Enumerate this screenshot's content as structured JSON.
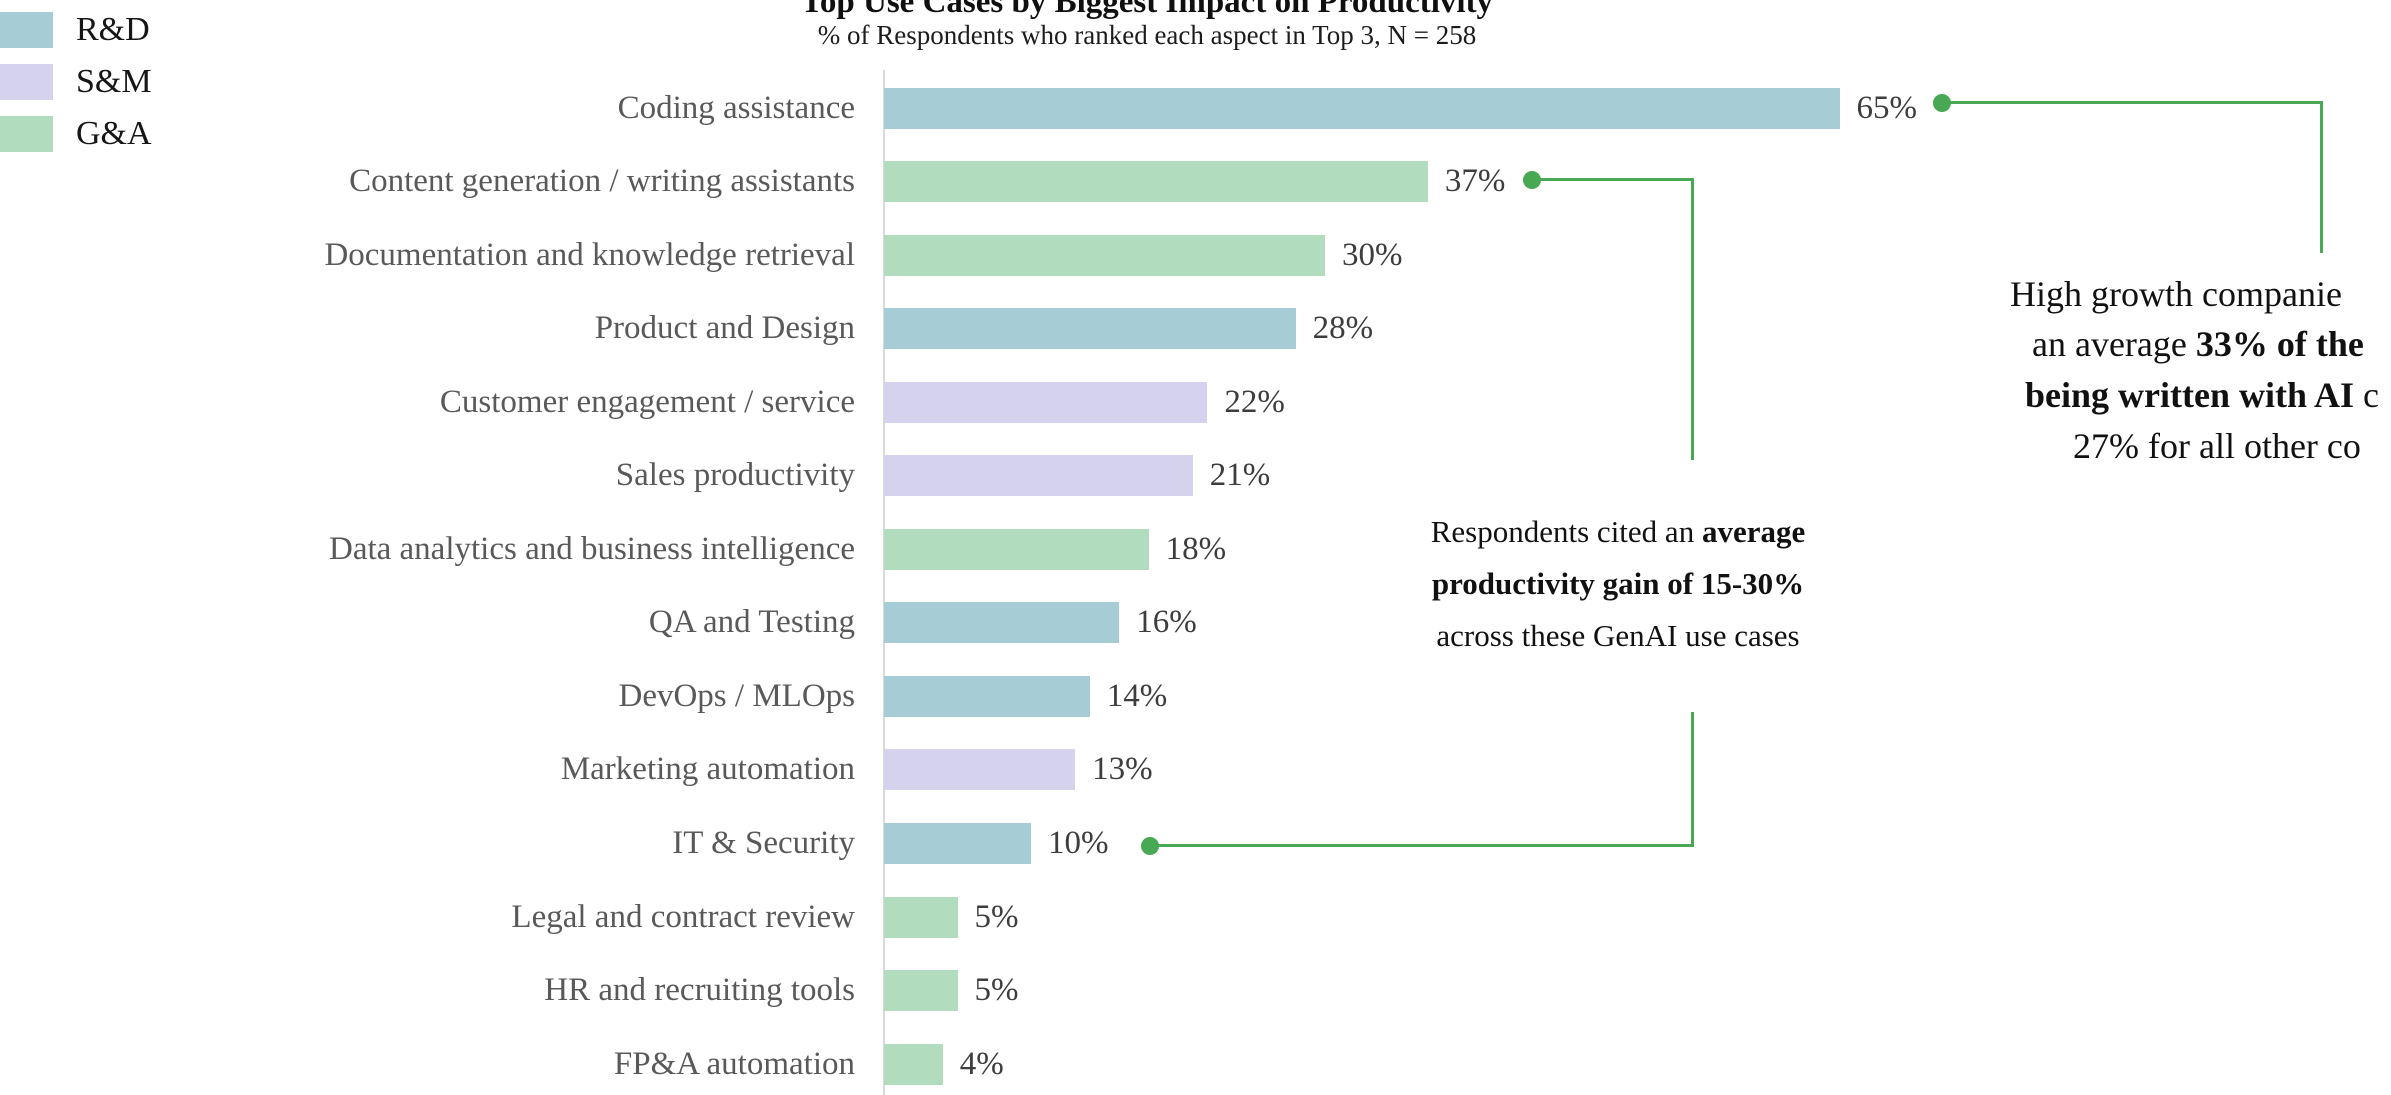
{
  "header": {
    "title": "Top Use Cases by Biggest Impact on Productivity",
    "subtitle": "% of Respondents who ranked each aspect in Top 3, N = 258"
  },
  "legend": {
    "items": [
      {
        "label": "R&D",
        "color": "#a6ccd5"
      },
      {
        "label": "S&M",
        "color": "#d4d2ed"
      },
      {
        "label": "G&A",
        "color": "#b1ddbe"
      }
    ]
  },
  "chart_data": {
    "type": "bar",
    "orientation": "horizontal",
    "title": "Top Use Cases by Biggest Impact on Productivity",
    "subtitle": "% of Respondents who ranked each aspect in Top 3, N = 258",
    "unit": "%",
    "legend_position": "top-left",
    "grid": false,
    "categories": [
      "Coding assistance",
      "Content generation / writing assistants",
      "Documentation and knowledge retrieval",
      "Product and Design",
      "Customer engagement / service",
      "Sales productivity",
      "Data analytics and business intelligence",
      "QA and Testing",
      "DevOps / MLOps",
      "Marketing automation",
      "IT & Security",
      "Legal and contract review",
      "HR and recruiting tools",
      "FP&A automation"
    ],
    "values": [
      65,
      37,
      30,
      28,
      22,
      21,
      18,
      16,
      14,
      13,
      10,
      5,
      5,
      4
    ],
    "value_labels": [
      "65%",
      "37%",
      "30%",
      "28%",
      "22%",
      "21%",
      "18%",
      "16%",
      "14%",
      "13%",
      "10%",
      "5%",
      "5%",
      "4%"
    ],
    "departments": [
      "R&D",
      "G&A",
      "G&A",
      "R&D",
      "S&M",
      "S&M",
      "G&A",
      "R&D",
      "R&D",
      "S&M",
      "R&D",
      "G&A",
      "G&A",
      "G&A"
    ],
    "colors": {
      "R&D": "#a6ccd5",
      "S&M": "#d4d2ed",
      "G&A": "#b1ddbe"
    },
    "connector_color": "#49a854",
    "axis_color": "#d9d9d9",
    "label_color": "#595959"
  },
  "annotations": {
    "center": {
      "lines": [
        [
          {
            "text": "Respondents cited an ",
            "bold": false
          },
          {
            "text": "average",
            "bold": true
          }
        ],
        [
          {
            "text": "productivity gain of 15-30%",
            "bold": true
          }
        ],
        [
          {
            "text": "across these GenAI use cases",
            "bold": false
          }
        ]
      ]
    },
    "right": {
      "lines": [
        [
          {
            "text": "High growth companie",
            "bold": false
          }
        ],
        [
          {
            "text": "an average ",
            "bold": false
          },
          {
            "text": "33% of the",
            "bold": true
          }
        ],
        [
          {
            "text": "being written with AI",
            "bold": true
          },
          {
            "text": " c",
            "bold": false
          }
        ],
        [
          {
            "text": "27% for all other co",
            "bold": false
          }
        ]
      ]
    }
  },
  "connectors": [
    {
      "anchor_value": "65%",
      "category": "Coding assistance",
      "links_to": "right-annotation"
    },
    {
      "anchor_value": "37%",
      "category": "Content generation / writing assistants",
      "links_to": "center-annotation"
    },
    {
      "anchor_value": "10%",
      "category": "IT & Security",
      "links_to": "center-annotation"
    }
  ]
}
